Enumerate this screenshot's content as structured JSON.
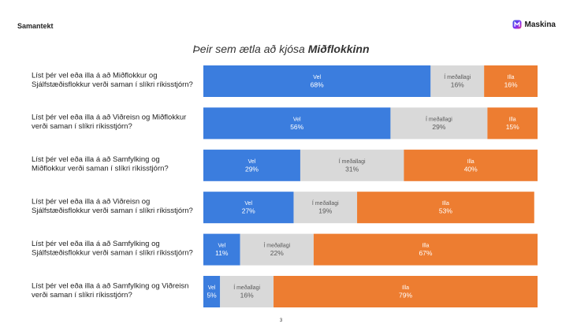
{
  "header": {
    "label": "Samantekt",
    "brand": "Maskina"
  },
  "title": {
    "prefix": "Þeir sem ætla að kjósa",
    "emphasis": "Miðflokkinn"
  },
  "page_number": "3",
  "colors": {
    "Vel": "#3b7dde",
    "Í meðallagi": "#d9d9d9",
    "Illa": "#ed7d31",
    "text_on_dark": "#ffffff",
    "text_on_light": "#595959"
  },
  "chart_data": {
    "type": "bar",
    "orientation": "horizontal",
    "stacked": true,
    "value_format": "percent",
    "categories": [
      "Líst þér vel eða illa á að Miðflokkur og Sjálfstæðisflokkur verði saman í slíkri ríkisstjórn?",
      "Líst þér vel eða illa á að Viðreisn og Miðflokkur verði saman í slíkri ríkisstjórn?",
      "Líst þér vel eða illa á að Samfylking og Miðflokkur verði saman í slíkri ríkisstjórn?",
      "Líst þér vel eða illa á að Viðreisn og Sjálfstæðisflokkur verði saman í slíkri ríkisstjórn?",
      "Líst þér vel eða illa á að Samfylking og Sjálfstæðisflokkur verði saman í slíkri ríkisstjórn?",
      "Líst þér vel eða illa á að Samfylking og Viðreisn verði saman í slíkri ríkisstjórn?"
    ],
    "category_lines": [
      [
        "Líst þér vel eða illa á að Miðflokkur og",
        "Sjálfstæðisflokkur verði saman í slíkri ríkisstjórn?"
      ],
      [
        "Líst þér vel eða illa á að Viðreisn og Miðflokkur",
        "verði saman í slíkri ríkisstjórn?"
      ],
      [
        "Líst þér vel eða illa á að Samfylking og",
        "Miðflokkur verði saman í slíkri ríkisstjórn?"
      ],
      [
        "Líst þér vel eða illa á að Viðreisn og",
        "Sjálfstæðisflokkur verði saman í slíkri ríkisstjórn?"
      ],
      [
        "Líst þér vel eða illa á að Samfylking og",
        "Sjálfstæðisflokkur verði saman í slíkri ríkisstjórn?"
      ],
      [
        "Líst þér vel eða illa á að Samfylking og Viðreisn",
        "verði saman í slíkri ríkisstjórn?"
      ]
    ],
    "series": [
      {
        "name": "Vel",
        "values": [
          68,
          56,
          29,
          27,
          11,
          5
        ]
      },
      {
        "name": "Í meðallagi",
        "values": [
          16,
          29,
          31,
          19,
          22,
          16
        ]
      },
      {
        "name": "Illa",
        "values": [
          16,
          15,
          40,
          53,
          67,
          79
        ]
      }
    ],
    "xlim": [
      0,
      100
    ],
    "grid": false,
    "legend": "none (labels inside segments)"
  }
}
